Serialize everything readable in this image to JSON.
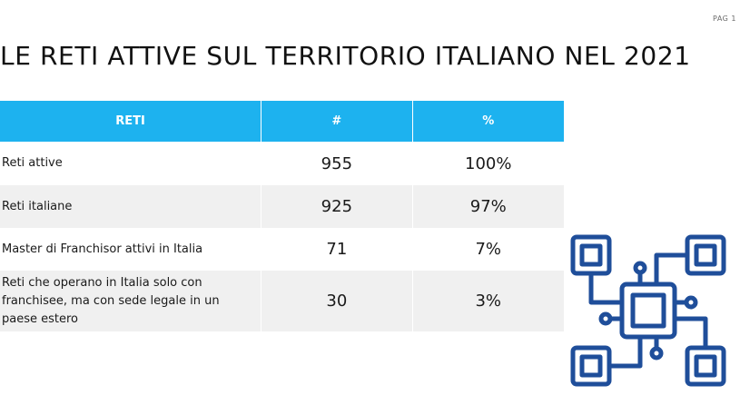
{
  "page": {
    "number_label": "PAG 1"
  },
  "title": "LE RETI ATTIVE SUL TERRITORIO ITALIANO NEL 2021",
  "table": {
    "headers": [
      "RETI",
      "#",
      "%"
    ],
    "rows": [
      {
        "label": "Reti attive",
        "count": "955",
        "percent": "100%"
      },
      {
        "label": "Reti italiane",
        "count": "925",
        "percent": "97%"
      },
      {
        "label": "Master di Franchisor attivi in Italia",
        "count": "71",
        "percent": "7%"
      },
      {
        "label": "Reti che operano in Italia solo con franchisee, ma con sede legale in un paese estero",
        "count": "30",
        "percent": "3%"
      }
    ]
  },
  "icon": {
    "name": "network-circuit-icon",
    "color": "#1f4e9a"
  },
  "colors": {
    "header_bg": "#1db2ef",
    "header_text": "#ffffff",
    "row_alt": "#f0f0f0"
  }
}
